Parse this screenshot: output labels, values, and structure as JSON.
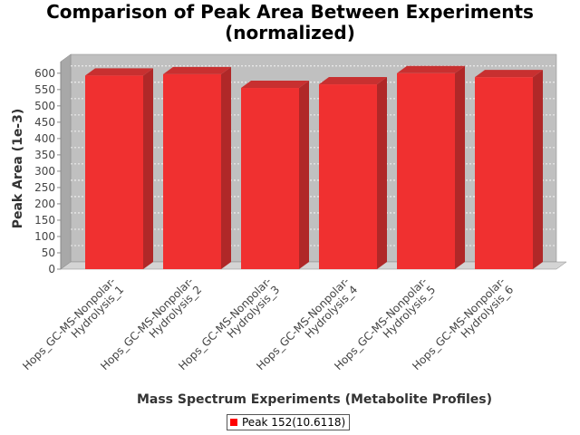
{
  "chart_data": {
    "type": "bar",
    "title_lines": [
      "Comparison of Peak Area Between Experiments",
      "(normalized)"
    ],
    "xlabel": "Mass Spectrum Experiments (Metabolite Profiles)",
    "ylabel": "Peak Area (1e-3)",
    "ylim": [
      0,
      630
    ],
    "yticks": [
      0,
      50,
      100,
      150,
      200,
      250,
      300,
      350,
      400,
      450,
      500,
      550,
      600
    ],
    "categories": [
      [
        "Hops_GC-MS-Nonpolar-",
        "Hydrolysis_1"
      ],
      [
        "Hops_GC-MS-Nonpolar-",
        "Hydrolysis_2"
      ],
      [
        "Hops_GC-MS-Nonpolar-",
        "Hydrolysis_3"
      ],
      [
        "Hops_GC-MS-Nonpolar-",
        "Hydrolysis_4"
      ],
      [
        "Hops_GC-MS-Nonpolar-",
        "Hydrolysis_5"
      ],
      [
        "Hops_GC-MS-Nonpolar-",
        "Hydrolysis_6"
      ]
    ],
    "series": [
      {
        "name": "Peak 152(10.6118)",
        "values": [
          593,
          597,
          555,
          566,
          600,
          588
        ]
      }
    ],
    "grid": true,
    "legend_position": "bottom",
    "colors": {
      "bar_front": "#f03030",
      "bar_side": "#b02828",
      "bar_top": "#c83030",
      "plot_bg": "#c0c0c0",
      "legend_swatch": "#ff0000"
    }
  }
}
